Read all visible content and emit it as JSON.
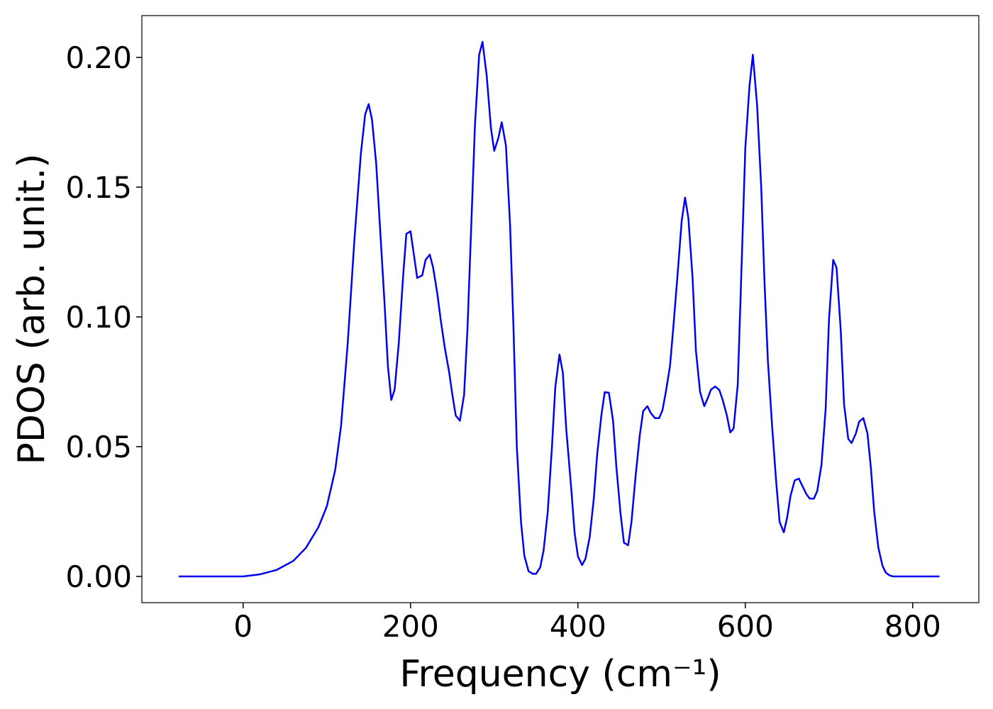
{
  "chart_data": {
    "type": "line",
    "x_label": "Frequency (cm⁻¹)",
    "y_label": "PDOS (arb. unit.)",
    "xlim": [
      -121,
      879
    ],
    "ylim": [
      -0.0101,
      0.2161
    ],
    "xticks": [
      0,
      200,
      400,
      600,
      800
    ],
    "yticks": [
      {
        "value": 0,
        "label": "0.00"
      },
      {
        "value": 0.05,
        "label": "0.05"
      },
      {
        "value": 0.1,
        "label": "0.10"
      },
      {
        "value": 0.15,
        "label": "0.15"
      },
      {
        "value": 0.2,
        "label": "0.20"
      }
    ],
    "grid": false,
    "x": [
      -77,
      -40,
      0,
      20,
      40,
      60,
      75,
      90,
      100,
      110,
      117,
      125,
      133,
      140.7,
      145.8,
      150,
      154,
      159,
      164,
      169,
      173,
      177,
      181,
      186,
      191,
      195,
      200,
      204,
      208,
      214,
      218,
      223,
      227,
      232,
      236,
      241,
      246,
      250,
      254,
      259,
      264,
      268,
      273,
      277,
      282,
      286,
      291,
      296,
      300,
      305,
      309,
      314,
      319,
      323,
      327,
      332,
      336,
      341,
      346,
      350,
      355,
      359,
      364,
      369,
      373,
      378,
      382,
      386,
      392,
      396,
      400,
      405,
      409,
      414,
      419,
      423,
      428,
      432,
      437,
      442,
      446,
      451,
      455,
      460,
      464,
      469,
      474,
      478,
      483,
      487,
      492,
      497,
      501,
      505,
      510,
      514,
      519,
      524,
      528,
      532,
      537,
      541,
      546,
      551,
      555,
      559,
      564,
      569,
      573,
      578,
      582,
      586,
      591,
      595,
      600,
      605,
      609,
      614,
      619,
      623,
      627,
      632,
      637,
      641,
      646,
      650,
      654,
      659,
      664,
      668,
      673,
      677,
      682,
      686,
      691,
      696,
      700,
      705,
      709,
      714,
      718,
      723,
      727,
      732,
      736,
      741,
      746,
      750,
      754,
      759,
      764,
      768,
      773,
      777,
      832
    ],
    "series": [
      {
        "name": "PDOS",
        "color": "#0000ee",
        "values": [
          0,
          0,
          0,
          0.0008,
          0.0025,
          0.006,
          0.011,
          0.019,
          0.027,
          0.041,
          0.058,
          0.09,
          0.13,
          0.163,
          0.178,
          0.182,
          0.176,
          0.159,
          0.132,
          0.105,
          0.081,
          0.068,
          0.072,
          0.09,
          0.115,
          0.132,
          0.133,
          0.124,
          0.115,
          0.116,
          0.122,
          0.124,
          0.119,
          0.109,
          0.099,
          0.088,
          0.079,
          0.07,
          0.062,
          0.06,
          0.07,
          0.095,
          0.139,
          0.174,
          0.201,
          0.206,
          0.193,
          0.173,
          0.164,
          0.169,
          0.175,
          0.166,
          0.135,
          0.096,
          0.05,
          0.021,
          0.008,
          0.002,
          0.001,
          0.001,
          0.0035,
          0.01,
          0.025,
          0.05,
          0.073,
          0.0855,
          0.0785,
          0.057,
          0.034,
          0.017,
          0.0077,
          0.0044,
          0.0068,
          0.015,
          0.03,
          0.047,
          0.062,
          0.071,
          0.0708,
          0.06,
          0.042,
          0.024,
          0.013,
          0.012,
          0.021,
          0.039,
          0.0546,
          0.0637,
          0.0656,
          0.063,
          0.061,
          0.061,
          0.064,
          0.071,
          0.081,
          0.096,
          0.116,
          0.137,
          0.146,
          0.138,
          0.115,
          0.087,
          0.071,
          0.0656,
          0.0686,
          0.072,
          0.0732,
          0.0718,
          0.068,
          0.062,
          0.0555,
          0.057,
          0.074,
          0.114,
          0.165,
          0.189,
          0.201,
          0.182,
          0.15,
          0.113,
          0.083,
          0.058,
          0.036,
          0.021,
          0.017,
          0.0227,
          0.031,
          0.037,
          0.0377,
          0.035,
          0.0317,
          0.03,
          0.03,
          0.033,
          0.043,
          0.0645,
          0.099,
          0.122,
          0.119,
          0.095,
          0.0664,
          0.053,
          0.0514,
          0.055,
          0.0596,
          0.061,
          0.055,
          0.042,
          0.025,
          0.011,
          0.004,
          0.0014,
          0.0003,
          0,
          0
        ]
      }
    ]
  }
}
